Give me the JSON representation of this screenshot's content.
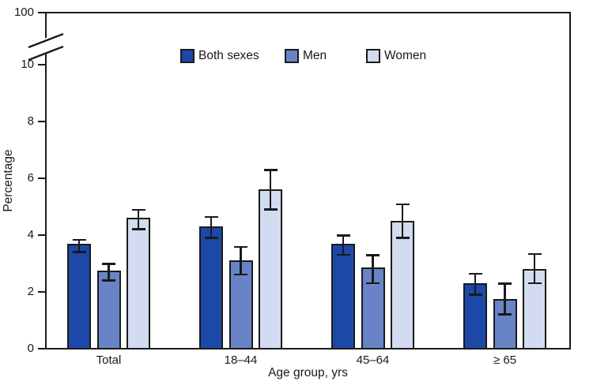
{
  "chart_data": {
    "type": "bar",
    "title": "",
    "xlabel": "Age group, yrs",
    "ylabel": "Percentage",
    "categories": [
      "Total",
      "18–44",
      "45–64",
      "≥ 65"
    ],
    "series": [
      {
        "name": "Both sexes",
        "color": "#1C49A8",
        "values": [
          3.7,
          4.3,
          3.7,
          2.3
        ],
        "ci_low": [
          3.4,
          3.9,
          3.3,
          1.9
        ],
        "ci_high": [
          3.9,
          4.7,
          4.05,
          2.7
        ]
      },
      {
        "name": "Men",
        "color": "#6884C6",
        "values": [
          2.75,
          3.1,
          2.85,
          1.75
        ],
        "ci_low": [
          2.4,
          2.6,
          2.3,
          1.2
        ],
        "ci_high": [
          3.05,
          3.65,
          3.35,
          2.35
        ]
      },
      {
        "name": "Women",
        "color": "#D2DBEF",
        "values": [
          4.6,
          5.6,
          4.5,
          2.8
        ],
        "ci_low": [
          4.2,
          4.9,
          3.9,
          2.3
        ],
        "ci_high": [
          4.95,
          6.35,
          5.15,
          3.4
        ]
      }
    ],
    "error_bars": "95% confidence interval",
    "y_ticks": [
      0,
      2,
      4,
      6,
      8,
      10
    ],
    "y_axis_break": {
      "lower_max": 10,
      "upper_tick_label": "100"
    },
    "ylim": [
      0,
      100
    ],
    "grid": false,
    "legend_position": "top-inside",
    "axis_color": "#1a1a1a",
    "background_color": "#ffffff"
  }
}
